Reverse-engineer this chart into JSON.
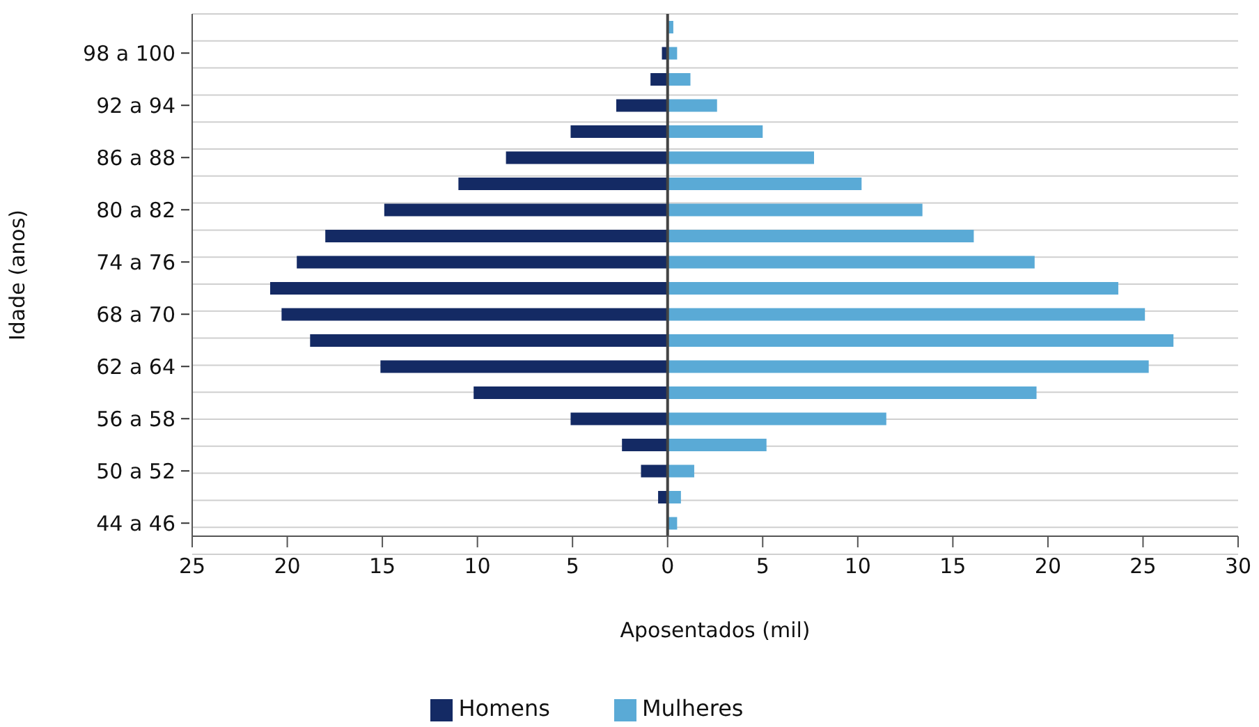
{
  "chart_data": {
    "type": "bar",
    "orientation": "horizontal",
    "xlabel": "Aposentados (mil)",
    "ylabel": "Idade (anos)",
    "categories": [
      null,
      "98 a 100",
      null,
      "92 a 94",
      null,
      "86 a 88",
      null,
      "80 a 82",
      null,
      "74 a 76",
      null,
      "68 a 70",
      null,
      "62 a 64",
      null,
      "56 a 58",
      null,
      "50 a 52",
      null,
      "44 a 46"
    ],
    "series": [
      {
        "name": "Homens",
        "color": "#142a64",
        "values": [
          0,
          -0.3,
          -0.9,
          -2.7,
          -5.1,
          -8.5,
          -11.0,
          -14.9,
          -18.0,
          -19.5,
          -20.9,
          -20.3,
          -18.8,
          -15.1,
          -10.2,
          -5.1,
          -2.4,
          -1.4,
          -0.5,
          0
        ]
      },
      {
        "name": "Mulheres",
        "color": "#5aaad6",
        "values": [
          0.3,
          0.5,
          1.2,
          2.6,
          5.0,
          7.7,
          10.2,
          13.4,
          16.1,
          19.3,
          23.7,
          25.1,
          26.6,
          25.3,
          19.4,
          11.5,
          5.2,
          1.4,
          0.7,
          0.5
        ]
      }
    ],
    "xlim": [
      -25,
      30
    ],
    "xticks": [
      {
        "value": -25,
        "label": "25"
      },
      {
        "value": -20,
        "label": "20"
      },
      {
        "value": -15,
        "label": "15"
      },
      {
        "value": -10,
        "label": "10"
      },
      {
        "value": -5,
        "label": "5"
      },
      0,
      5,
      10,
      15,
      20,
      25,
      30
    ],
    "grid": "y",
    "legend": "bottom",
    "stacked": true
  }
}
